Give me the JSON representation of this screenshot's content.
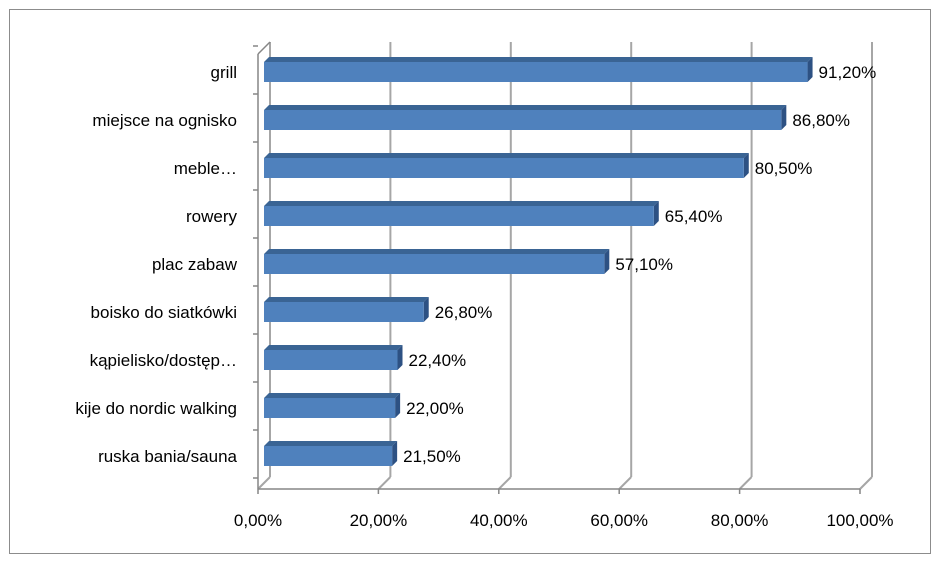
{
  "chart_data": {
    "type": "bar",
    "orientation": "horizontal",
    "style": "3d",
    "categories": [
      "grill",
      "miejsce na ognisko",
      "meble…",
      "rowery",
      "plac zabaw",
      "boisko do siatkówki",
      "kąpielisko/dostęp…",
      "kije do nordic walking",
      "ruska bania/sauna"
    ],
    "values": [
      91.2,
      86.8,
      80.5,
      65.4,
      57.1,
      26.8,
      22.4,
      22.0,
      21.5
    ],
    "data_labels": [
      "91,20%",
      "86,80%",
      "80,50%",
      "65,40%",
      "57,10%",
      "26,80%",
      "22,40%",
      "22,00%",
      "21,50%"
    ],
    "x_ticks": [
      0,
      20,
      40,
      60,
      80,
      100
    ],
    "x_tick_labels": [
      "0,00%",
      "20,00%",
      "40,00%",
      "60,00%",
      "80,00%",
      "100,00%"
    ],
    "xlim": [
      0,
      100
    ],
    "grid": true,
    "legend": "none",
    "colors": {
      "bar_front": "#4f81bd",
      "bar_top": "#3a6494",
      "bar_side": "#2d5183",
      "grid": "#a6a6a6",
      "axis": "#868686"
    }
  }
}
